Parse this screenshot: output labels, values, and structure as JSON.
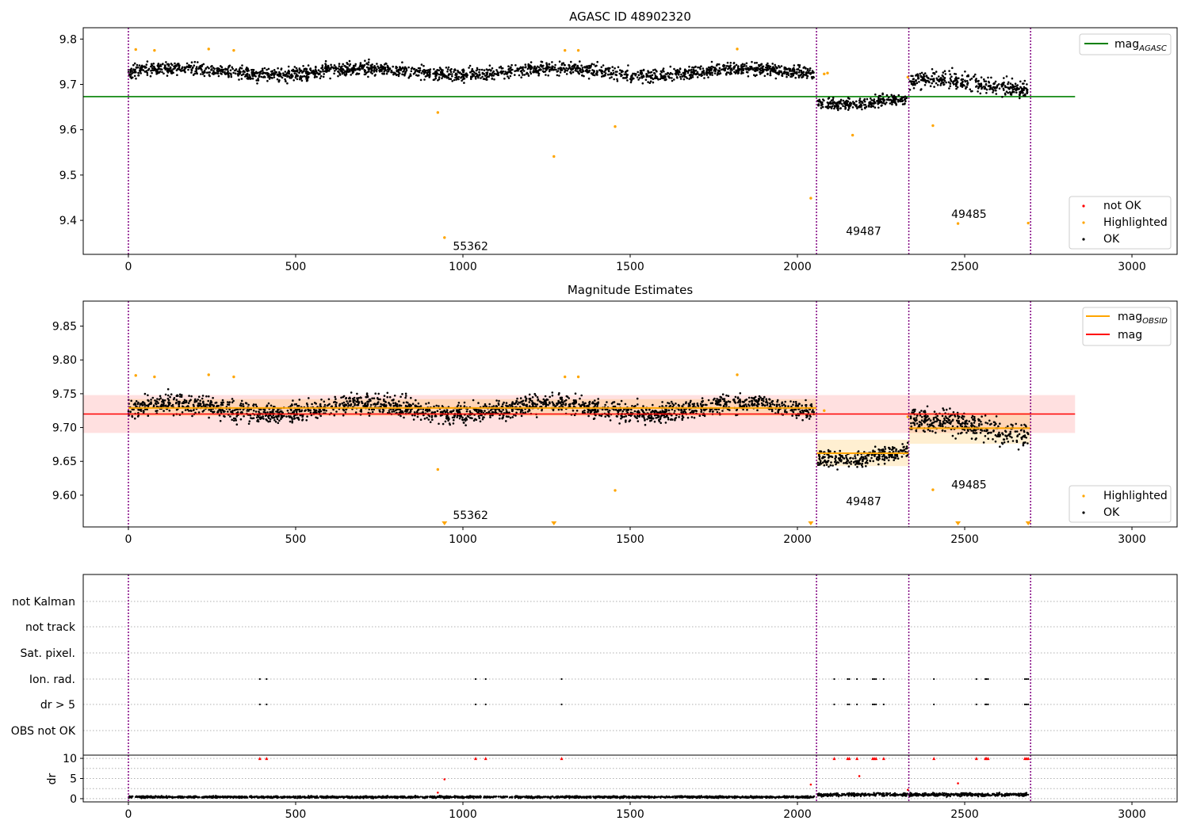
{
  "chart_data": [
    {
      "type": "scatter",
      "title": "AGASC ID 48902320",
      "xlim": [
        -135,
        3135
      ],
      "ylim": [
        9.325,
        9.825
      ],
      "x_ticks": [
        "0",
        "500",
        "1000",
        "1500",
        "2000",
        "2500",
        "3000"
      ],
      "x_tick_values": [
        0,
        500,
        1000,
        1500,
        2000,
        2500,
        3000
      ],
      "y_ticks": [
        "9.4",
        "9.5",
        "9.6",
        "9.7",
        "9.8"
      ],
      "y_tick_values": [
        9.4,
        9.5,
        9.6,
        9.7,
        9.8
      ],
      "obs_boundaries": [
        0,
        2057,
        2333,
        2697
      ],
      "legend_lines": [
        {
          "label_main": "mag",
          "label_sub": "AGASC",
          "color": "#008000",
          "y": 9.673,
          "x_range": [
            -135,
            2830
          ]
        }
      ],
      "legend_points": [
        {
          "label": "not OK",
          "color": "#ff0000"
        },
        {
          "label": "Highlighted",
          "color": "#ffa500"
        },
        {
          "label": "OK",
          "color": "#000000"
        }
      ],
      "segments": [
        {
          "x": [
            0,
            2050
          ],
          "center": 9.728,
          "spread": 0.013
        },
        {
          "x": [
            2060,
            2330
          ],
          "center": 9.663,
          "spread": 0.011
        },
        {
          "x": [
            2336,
            2690
          ],
          "center": 9.7,
          "spread": 0.017
        }
      ],
      "highlighted": [
        [
          22,
          9.777
        ],
        [
          78,
          9.775
        ],
        [
          240,
          9.778
        ],
        [
          315,
          9.775
        ],
        [
          925,
          9.638
        ],
        [
          945,
          9.362
        ],
        [
          1272,
          9.541
        ],
        [
          1305,
          9.775
        ],
        [
          1345,
          9.775
        ],
        [
          1455,
          9.607
        ],
        [
          1820,
          9.778
        ],
        [
          2040,
          9.449
        ],
        [
          2080,
          9.723
        ],
        [
          2090,
          9.725
        ],
        [
          2165,
          9.588
        ],
        [
          2330,
          9.716
        ],
        [
          2405,
          9.609
        ],
        [
          2480,
          9.393
        ],
        [
          2690,
          9.394
        ]
      ],
      "annotations": [
        {
          "text": "55362",
          "x": 970,
          "y": 9.335
        },
        {
          "text": "49487",
          "x": 2145,
          "y": 9.368
        },
        {
          "text": "49485",
          "x": 2460,
          "y": 9.405
        }
      ]
    },
    {
      "type": "scatter",
      "title": "Magnitude Estimates",
      "xlim": [
        -135,
        3135
      ],
      "ylim": [
        9.553,
        9.887
      ],
      "x_ticks": [
        "0",
        "500",
        "1000",
        "1500",
        "2000",
        "2500",
        "3000"
      ],
      "x_tick_values": [
        0,
        500,
        1000,
        1500,
        2000,
        2500,
        3000
      ],
      "y_ticks": [
        "9.60",
        "9.65",
        "9.70",
        "9.75",
        "9.80",
        "9.85"
      ],
      "y_tick_values": [
        9.6,
        9.65,
        9.7,
        9.75,
        9.8,
        9.85
      ],
      "obs_boundaries": [
        0,
        2057,
        2333,
        2697
      ],
      "mag": {
        "value": 9.72,
        "band": [
          9.692,
          9.748
        ],
        "x_range": [
          -135,
          2830
        ],
        "color": "#ff0000"
      },
      "mag_obsid": [
        {
          "x": [
            0,
            2057
          ],
          "value": 9.729,
          "band": [
            9.717,
            9.742
          ]
        },
        {
          "x": [
            2057,
            2333
          ],
          "value": 9.662,
          "band": [
            9.643,
            9.682
          ]
        },
        {
          "x": [
            2333,
            2697
          ],
          "value": 9.699,
          "band": [
            9.676,
            9.722
          ]
        }
      ],
      "legend_lines": [
        {
          "label_main": "mag",
          "label_sub": "OBSID",
          "color": "#ffa500"
        },
        {
          "label_main": "mag",
          "label_sub": "",
          "color": "#ff0000"
        }
      ],
      "legend_points": [
        {
          "label": "Highlighted",
          "color": "#ffa500"
        },
        {
          "label": "OK",
          "color": "#000000"
        }
      ],
      "segments": [
        {
          "x": [
            0,
            2050
          ],
          "center": 9.728,
          "spread": 0.013
        },
        {
          "x": [
            2060,
            2330
          ],
          "center": 9.66,
          "spread": 0.011
        },
        {
          "x": [
            2336,
            2690
          ],
          "center": 9.7,
          "spread": 0.017
        }
      ],
      "highlighted": [
        [
          22,
          9.777
        ],
        [
          78,
          9.775
        ],
        [
          240,
          9.778
        ],
        [
          315,
          9.775
        ],
        [
          925,
          9.638
        ],
        [
          1305,
          9.775
        ],
        [
          1345,
          9.775
        ],
        [
          1455,
          9.607
        ],
        [
          1820,
          9.778
        ],
        [
          2080,
          9.725
        ],
        [
          2330,
          9.716
        ],
        [
          2405,
          9.608
        ]
      ],
      "offscale_markers": [
        945,
        1272,
        2040,
        2480,
        2690
      ],
      "annotations": [
        {
          "text": "55362",
          "x": 970,
          "y": 9.565
        },
        {
          "text": "49487",
          "x": 2145,
          "y": 9.585
        },
        {
          "text": "49485",
          "x": 2460,
          "y": 9.61
        }
      ]
    },
    {
      "type": "scatter",
      "xlim": [
        -135,
        3135
      ],
      "x_ticks": [
        "0",
        "500",
        "1000",
        "1500",
        "2000",
        "2500",
        "3000"
      ],
      "x_tick_values": [
        0,
        500,
        1000,
        1500,
        2000,
        2500,
        3000
      ],
      "obs_boundaries": [
        0,
        2057,
        2333,
        2697
      ],
      "flag_categories": [
        "not Kalman",
        "not track",
        "Sat. pixel.",
        "Ion. rad.",
        "dr > 5",
        "OBS not OK"
      ],
      "flag_points": {
        "Ion. rad.": [
          393,
          413,
          1038,
          1068,
          1295,
          2110,
          2150,
          2155,
          2178,
          2225,
          2230,
          2235,
          2258,
          2408,
          2535,
          2562,
          2565,
          2570,
          2680,
          2685,
          2690
        ],
        "dr > 5": [
          393,
          413,
          1038,
          1068,
          1295,
          2110,
          2150,
          2155,
          2178,
          2225,
          2230,
          2235,
          2258,
          2408,
          2535,
          2562,
          2565,
          2570,
          2680,
          2685,
          2690
        ]
      },
      "dr_ylabel": "dr",
      "dr_ylim": [
        -0.8,
        10.8
      ],
      "dr_ticks": [
        "0",
        "5",
        "10"
      ],
      "dr_tick_values": [
        0,
        5,
        10
      ],
      "dr_clipped": [
        393,
        413,
        1038,
        1068,
        1295,
        2110,
        2150,
        2155,
        2178,
        2225,
        2230,
        2235,
        2258,
        2408,
        2535,
        2562,
        2565,
        2570,
        2680,
        2685,
        2690
      ],
      "dr_outliers": [
        [
          945,
          4.8
        ],
        [
          2040,
          3.5
        ],
        [
          2185,
          5.6
        ],
        [
          2480,
          3.8
        ],
        [
          925,
          1.5
        ],
        [
          2330,
          2.2
        ]
      ],
      "dr_segments": [
        {
          "x": [
            0,
            2050
          ],
          "center": 0.4,
          "spread": 0.22
        },
        {
          "x": [
            2060,
            2690
          ],
          "center": 1.0,
          "spread": 0.35
        }
      ]
    }
  ]
}
